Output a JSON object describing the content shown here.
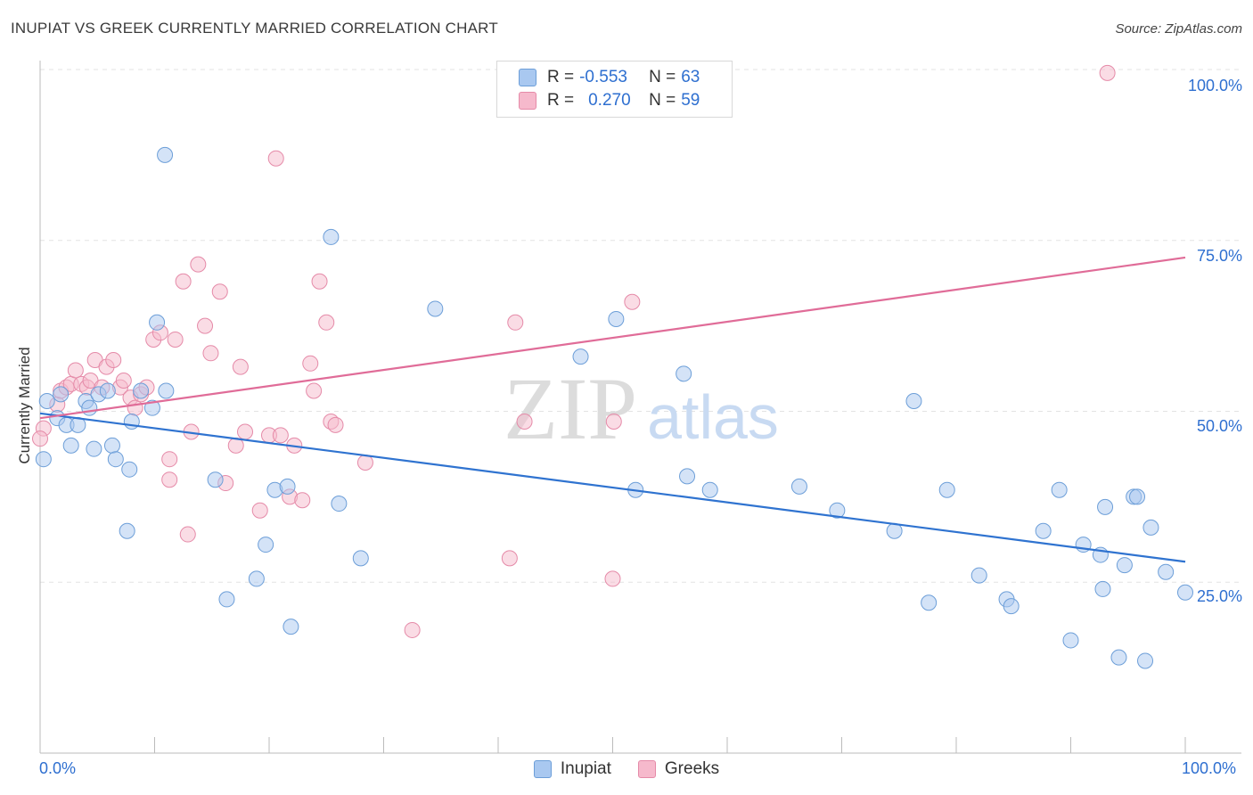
{
  "header": {
    "title": "INUPIAT VS GREEK CURRENTLY MARRIED CORRELATION CHART",
    "source": "Source: ZipAtlas.com"
  },
  "watermark": {
    "part1": "ZIP",
    "part2": "atlas"
  },
  "colors": {
    "inupiat_fill": "#a9c8f0",
    "inupiat_stroke": "#6c9ed8",
    "inupiat_line": "#2f73d0",
    "greeks_fill": "#f6b9cc",
    "greeks_stroke": "#e58aa8",
    "greeks_line": "#e06c98",
    "accent_text": "#2e6fd0"
  },
  "legend_top": {
    "rows": [
      {
        "r_label": "R =",
        "r_value": "-0.553",
        "n_label": "N =",
        "n_value": "63"
      },
      {
        "r_label": "R =",
        "r_value": "0.270",
        "n_label": "N =",
        "n_value": "59"
      }
    ]
  },
  "legend_bottom": {
    "items": [
      "Inupiat",
      "Greeks"
    ]
  },
  "chart_data": {
    "type": "scatter",
    "title": "INUPIAT VS GREEK CURRENTLY MARRIED CORRELATION CHART",
    "xlabel": "",
    "ylabel": "Currently Married",
    "x_tick_labels": [
      "0.0%",
      "100.0%"
    ],
    "y_tick_labels": [
      "25.0%",
      "50.0%",
      "75.0%",
      "100.0%"
    ],
    "xlim": [
      0,
      100
    ],
    "ylim": [
      0,
      100
    ],
    "grid": true,
    "legend_position": "top-center",
    "series": [
      {
        "name": "Inupiat",
        "trend": {
          "x": [
            0,
            100
          ],
          "y": [
            49.7,
            28.0
          ]
        },
        "points": [
          [
            0.3,
            43
          ],
          [
            0.6,
            51.5
          ],
          [
            1.5,
            49
          ],
          [
            1.8,
            52.5
          ],
          [
            2.3,
            48
          ],
          [
            2.7,
            45
          ],
          [
            3.3,
            48
          ],
          [
            4.0,
            51.5
          ],
          [
            4.3,
            50.5
          ],
          [
            4.7,
            44.5
          ],
          [
            5.1,
            52.5
          ],
          [
            5.9,
            53
          ],
          [
            6.3,
            45
          ],
          [
            6.6,
            43
          ],
          [
            7.6,
            32.5
          ],
          [
            7.8,
            41.5
          ],
          [
            8.0,
            48.5
          ],
          [
            8.8,
            53
          ],
          [
            9.8,
            50.5
          ],
          [
            10.2,
            63
          ],
          [
            10.9,
            87.5
          ],
          [
            11.0,
            53
          ],
          [
            15.3,
            40
          ],
          [
            16.3,
            22.5
          ],
          [
            18.9,
            25.5
          ],
          [
            19.7,
            30.5
          ],
          [
            20.5,
            38.5
          ],
          [
            21.6,
            39
          ],
          [
            21.9,
            18.5
          ],
          [
            25.4,
            75.5
          ],
          [
            26.1,
            36.5
          ],
          [
            28.0,
            28.5
          ],
          [
            34.5,
            65
          ],
          [
            47.2,
            58
          ],
          [
            50.3,
            63.5
          ],
          [
            52.0,
            38.5
          ],
          [
            56.2,
            55.5
          ],
          [
            56.5,
            40.5
          ],
          [
            58.5,
            38.5
          ],
          [
            66.3,
            39
          ],
          [
            69.6,
            35.5
          ],
          [
            74.6,
            32.5
          ],
          [
            76.3,
            51.5
          ],
          [
            77.6,
            22
          ],
          [
            79.2,
            38.5
          ],
          [
            82.0,
            26
          ],
          [
            84.4,
            22.5
          ],
          [
            84.8,
            21.5
          ],
          [
            87.6,
            32.5
          ],
          [
            89.0,
            38.5
          ],
          [
            90.0,
            16.5
          ],
          [
            91.1,
            30.5
          ],
          [
            92.6,
            29
          ],
          [
            92.8,
            24
          ],
          [
            93.0,
            36
          ],
          [
            94.2,
            14
          ],
          [
            94.7,
            27.5
          ],
          [
            95.5,
            37.5
          ],
          [
            95.8,
            37.5
          ],
          [
            96.5,
            13.5
          ],
          [
            97.0,
            33
          ],
          [
            98.3,
            26.5
          ],
          [
            100.0,
            23.5
          ]
        ]
      },
      {
        "name": "Greeks",
        "trend": {
          "x": [
            0,
            100
          ],
          "y": [
            49.0,
            72.5
          ]
        },
        "points": [
          [
            0.3,
            47.5
          ],
          [
            1.5,
            51
          ],
          [
            1.8,
            53
          ],
          [
            2.3,
            53.5
          ],
          [
            2.7,
            54
          ],
          [
            3.1,
            56
          ],
          [
            3.6,
            54
          ],
          [
            4.1,
            53.5
          ],
          [
            4.4,
            54.5
          ],
          [
            4.8,
            57.5
          ],
          [
            5.4,
            53.5
          ],
          [
            5.8,
            56.5
          ],
          [
            6.4,
            57.5
          ],
          [
            7.0,
            53.5
          ],
          [
            7.3,
            54.5
          ],
          [
            7.9,
            52
          ],
          [
            8.3,
            50.5
          ],
          [
            8.8,
            52.5
          ],
          [
            9.3,
            53.5
          ],
          [
            9.9,
            60.5
          ],
          [
            10.5,
            61.5
          ],
          [
            11.3,
            43
          ],
          [
            11.3,
            40
          ],
          [
            11.8,
            60.5
          ],
          [
            12.5,
            69
          ],
          [
            12.9,
            32
          ],
          [
            13.2,
            47
          ],
          [
            13.8,
            71.5
          ],
          [
            14.4,
            62.5
          ],
          [
            14.9,
            58.5
          ],
          [
            15.7,
            67.5
          ],
          [
            16.2,
            39.5
          ],
          [
            17.1,
            45
          ],
          [
            17.5,
            56.5
          ],
          [
            17.9,
            47
          ],
          [
            19.2,
            35.5
          ],
          [
            20.0,
            46.5
          ],
          [
            20.6,
            87
          ],
          [
            21.0,
            46.5
          ],
          [
            21.8,
            37.5
          ],
          [
            22.2,
            45
          ],
          [
            22.9,
            37
          ],
          [
            23.6,
            57
          ],
          [
            23.9,
            53
          ],
          [
            24.4,
            69
          ],
          [
            25.0,
            63
          ],
          [
            25.4,
            48.5
          ],
          [
            25.8,
            48
          ],
          [
            28.4,
            42.5
          ],
          [
            32.5,
            18
          ],
          [
            41.0,
            28.5
          ],
          [
            41.5,
            63
          ],
          [
            42.3,
            48.5
          ],
          [
            50.0,
            25.5
          ],
          [
            50.1,
            48.5
          ],
          [
            51.7,
            66
          ],
          [
            56.3,
            100
          ],
          [
            93.2,
            99.5
          ],
          [
            0.0,
            46
          ]
        ]
      }
    ]
  }
}
